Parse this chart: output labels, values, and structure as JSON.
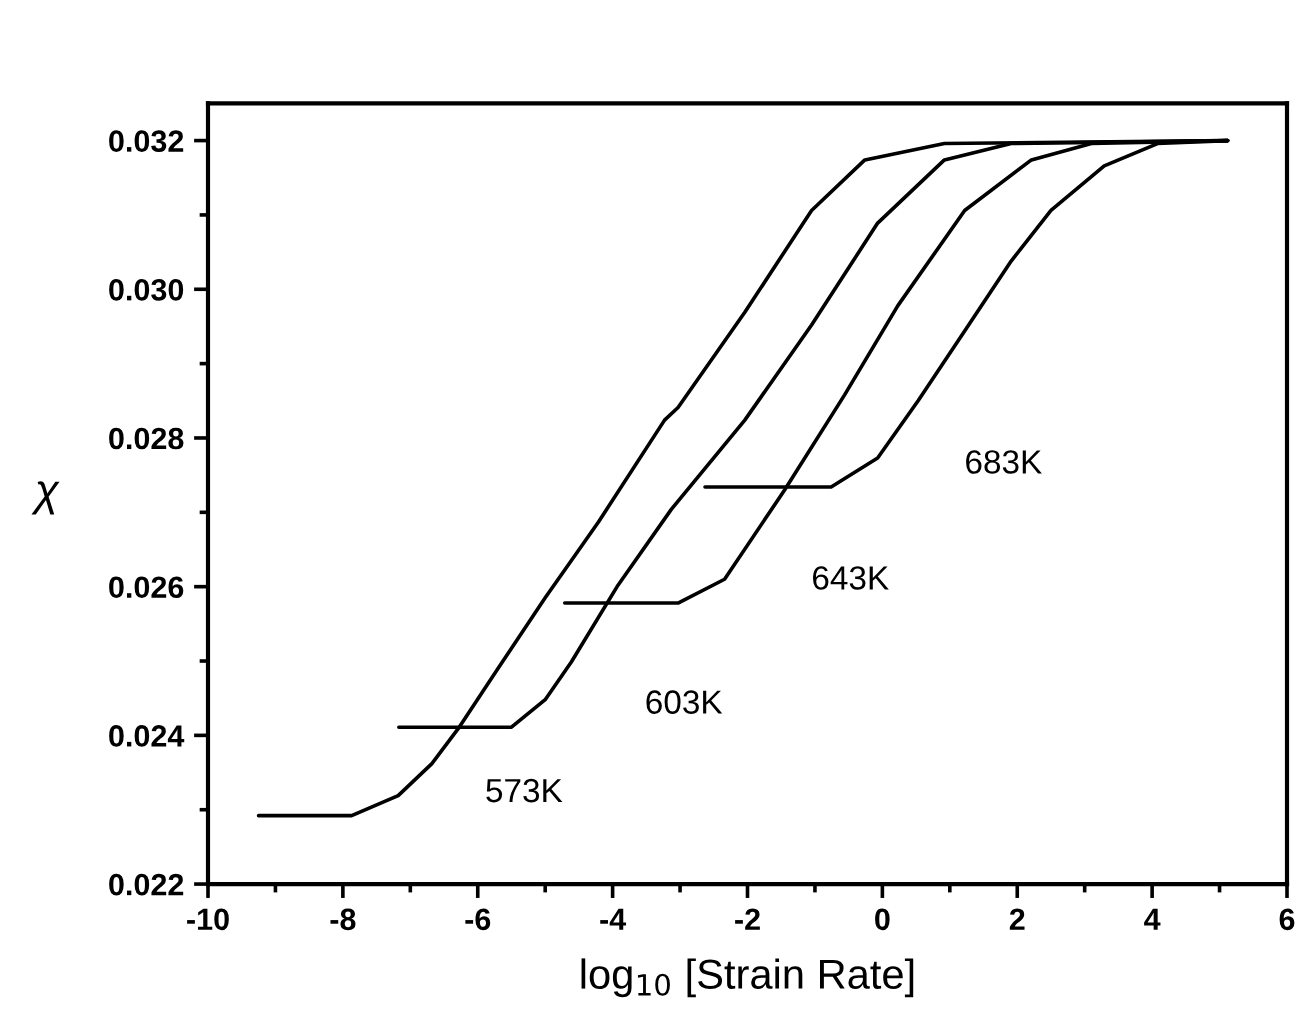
{
  "chart_data": {
    "type": "line",
    "xlabel": "log$_{10}$ [Strain Rate]",
    "ylabel": "χ",
    "xlim": [
      -10,
      6
    ],
    "xticks": [
      -10,
      -8,
      -6,
      -4,
      -2,
      0,
      2,
      4,
      6
    ],
    "ylim": [
      0.022,
      0.0325
    ],
    "yticks": [
      {
        "value": 0.022,
        "label": "0.022"
      },
      {
        "value": 0.024,
        "label": "0.024"
      },
      {
        "value": 0.026,
        "label": "0.026"
      },
      {
        "value": 0.028,
        "label": "0.028"
      },
      {
        "value": 0.03,
        "label": "0.030"
      },
      {
        "value": 0.032,
        "label": "0.032"
      }
    ],
    "grid": false,
    "legend": false,
    "marker": "none",
    "line_style": "solid",
    "series": [
      {
        "name": "573K",
        "color": "#000000",
        "x": [
          -9.25,
          -7.87,
          -7.18,
          -6.68,
          -6.29,
          -5.7,
          -5.0,
          -4.21,
          -3.23,
          -3.03,
          -2.04,
          -1.05,
          -0.26,
          0.92,
          5.12
        ],
        "values": [
          0.02292,
          0.02292,
          0.02319,
          0.02362,
          0.02409,
          0.0249,
          0.02585,
          0.02687,
          0.02824,
          0.02841,
          0.02969,
          0.03106,
          0.03174,
          0.03196,
          0.032
        ]
      },
      {
        "name": "603K",
        "color": "#000000",
        "x": [
          -7.17,
          -5.5,
          -5.0,
          -4.61,
          -3.92,
          -3.13,
          -2.04,
          -1.05,
          -0.07,
          0.92,
          1.91,
          5.12
        ],
        "values": [
          0.02411,
          0.02411,
          0.02448,
          0.02499,
          0.02602,
          0.02704,
          0.02824,
          0.02952,
          0.03089,
          0.03174,
          0.03196,
          0.032
        ]
      },
      {
        "name": "643K",
        "color": "#000000",
        "x": [
          -4.71,
          -3.03,
          -2.34,
          -1.45,
          -0.56,
          0.23,
          1.22,
          2.21,
          3.1,
          5.12
        ],
        "values": [
          0.02578,
          0.02578,
          0.0261,
          0.0273,
          0.02858,
          0.02978,
          0.03106,
          0.03174,
          0.03196,
          0.032
        ]
      },
      {
        "name": "683K",
        "color": "#000000",
        "x": [
          -2.63,
          -0.76,
          -0.07,
          0.53,
          1.22,
          1.91,
          2.5,
          3.29,
          4.08,
          5.12
        ],
        "values": [
          0.02734,
          0.02734,
          0.02773,
          0.0285,
          0.02944,
          0.03038,
          0.03106,
          0.03166,
          0.03196,
          0.032
        ]
      }
    ]
  }
}
